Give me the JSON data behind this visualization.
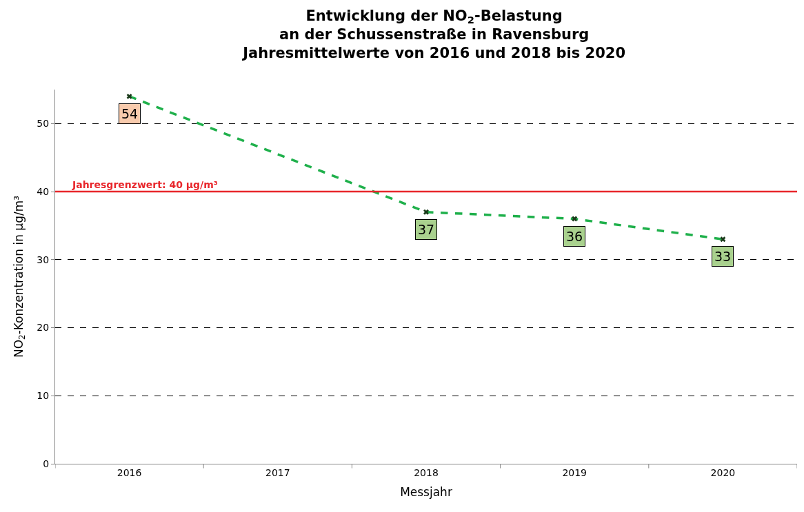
{
  "chart_data": {
    "type": "line",
    "title": "Entwicklung der NO$_{2}$-Belastung\nan der Schussenstraße in Ravensburg\nJahresmittelwerte von 2016 und 2018 bis 2020",
    "xlabel": "Messjahr",
    "ylabel": "NO$_{2}$-Konzentration in µg/m³",
    "categories": [
      "2016",
      "2017",
      "2018",
      "2019",
      "2020"
    ],
    "series": [
      {
        "color": "#1fb04b",
        "values": [
          54,
          null,
          37,
          36,
          33
        ]
      }
    ],
    "ylim": [
      0,
      55
    ],
    "yticks": [
      0,
      10,
      20,
      30,
      40,
      50
    ],
    "grid": "y",
    "marker": "cross",
    "line_style": "dashed",
    "data_labels": true,
    "ref_lines": [
      {
        "axis": "y",
        "value": 40,
        "label": "Jahresgrenzwert: 40 µg/m³",
        "color": "#e8262b",
        "line_style": "solid"
      }
    ]
  }
}
